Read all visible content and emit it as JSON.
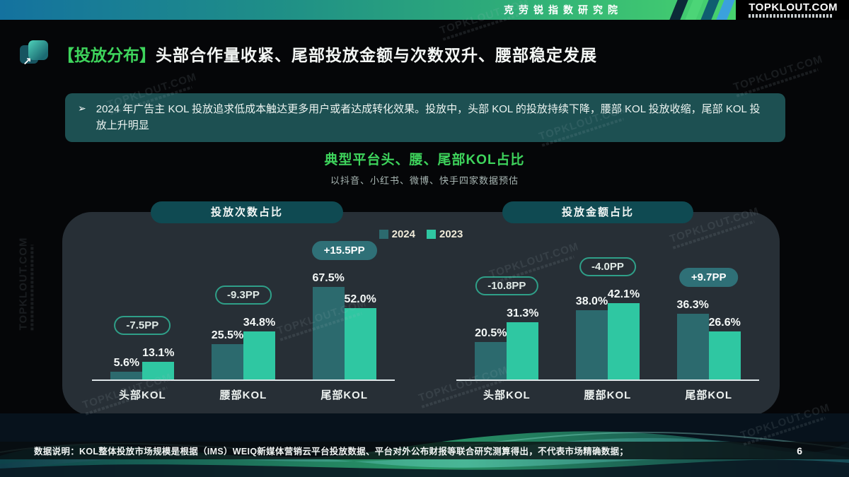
{
  "topbar": {
    "org_name": "克劳锐指数研究院",
    "logo": "TOPKLOUT.COM"
  },
  "title": {
    "tag": "【投放分布】",
    "text": "头部合作量收紧、尾部投放金额与次数双升、腰部稳定发展"
  },
  "note": {
    "bullet": "➢",
    "text": "2024 年广告主 KOL 投放追求低成本触达更多用户或者达成转化效果。投放中，头部 KOL 的投放持续下降，腰部 KOL 投放收缩，尾部 KOL 投放上升明显"
  },
  "chart_header": {
    "title": "典型平台头、腰、尾部KOL占比",
    "subtitle": "以抖音、小红书、微博、快手四家数据预估"
  },
  "legend": {
    "items": [
      {
        "label": "2024",
        "color": "#2c6a6e"
      },
      {
        "label": "2023",
        "color": "#2fc7a2"
      }
    ]
  },
  "chart_data": [
    {
      "type": "bar",
      "title": "投放次数占比",
      "categories": [
        "头部KOL",
        "腰部KOL",
        "尾部KOL"
      ],
      "series": [
        {
          "name": "2024",
          "color": "#2c6a6e",
          "values": [
            5.6,
            25.5,
            67.5
          ]
        },
        {
          "name": "2023",
          "color": "#2fc7a2",
          "values": [
            13.1,
            34.8,
            52.0
          ]
        }
      ],
      "badges": [
        {
          "text": "-7.5PP",
          "style": "outlined"
        },
        {
          "text": "-9.3PP",
          "style": "outlined"
        },
        {
          "text": "+15.5PP",
          "style": "filled"
        }
      ],
      "unit": "%",
      "ylim": [
        0,
        90
      ],
      "grid": false,
      "legend_position": "top-center"
    },
    {
      "type": "bar",
      "title": "投放金额占比",
      "categories": [
        "头部KOL",
        "腰部KOL",
        "尾部KOL"
      ],
      "series": [
        {
          "name": "2024",
          "color": "#2c6a6e",
          "values": [
            20.5,
            38.0,
            36.3
          ]
        },
        {
          "name": "2023",
          "color": "#2fc7a2",
          "values": [
            31.3,
            42.1,
            26.6
          ]
        }
      ],
      "badges": [
        {
          "text": "-10.8PP",
          "style": "outlined"
        },
        {
          "text": "-4.0PP",
          "style": "outlined"
        },
        {
          "text": "+9.7PP",
          "style": "filled"
        }
      ],
      "unit": "%",
      "ylim": [
        0,
        68
      ],
      "grid": false,
      "legend_position": "top-center"
    }
  ],
  "footer": {
    "note": "数据说明：KOL整体投放市场规模是根据（IMS）WEIQ新媒体营销云平台投放数据、平台对外公布财报等联合研究测算得出，不代表市场精确数据；",
    "page": "6"
  },
  "watermark": {
    "text": "TOPKLOUT.COM"
  },
  "colors": {
    "accent_green": "#3ed45c",
    "bar_2024": "#2c6a6e",
    "bar_2023": "#2fc7a2",
    "panel_bg": "#272f36",
    "pill_bg": "#0f4a52",
    "note_bg": "#1d5052",
    "badge_outline": "#2f9f88",
    "badge_fill": "#2f7077"
  }
}
